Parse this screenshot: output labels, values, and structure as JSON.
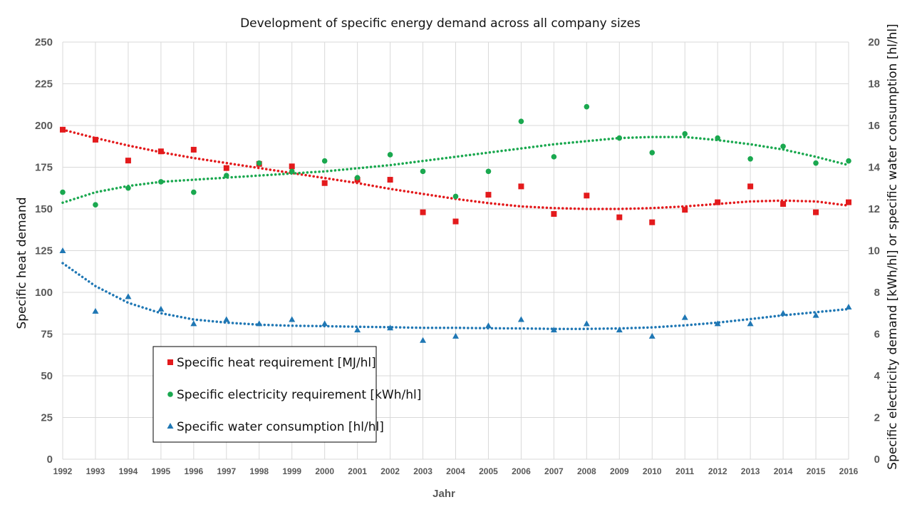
{
  "chart_data": {
    "type": "scatter",
    "title": "Development of specific energy demand across all company sizes",
    "xlabel": "Jahr",
    "ylabel_left": "Specific heat demand",
    "ylabel_right": "Specific electricity demand [kWh/hl] or specific water consumption [hl/hl]",
    "x": [
      1992,
      1993,
      1994,
      1995,
      1996,
      1997,
      1998,
      1999,
      2000,
      2001,
      2002,
      2003,
      2004,
      2005,
      2006,
      2007,
      2008,
      2009,
      2010,
      2011,
      2012,
      2013,
      2014,
      2015,
      2016
    ],
    "x_tick_labels": [
      "1992",
      "1993",
      "1994",
      "1995",
      "1996",
      "1997",
      "1998",
      "1999",
      "2000",
      "2001",
      "2002",
      "2003",
      "2004",
      "2005",
      "2006",
      "2007",
      "2008",
      "2009",
      "2010",
      "2011",
      "2012",
      "2013",
      "2014",
      "2015",
      "2016"
    ],
    "ylim_left": [
      0,
      250
    ],
    "ylim_right": [
      0,
      20
    ],
    "left_ticks": [
      "0",
      "25",
      "50",
      "75",
      "100",
      "125",
      "150",
      "175",
      "200",
      "225",
      "250"
    ],
    "right_ticks": [
      "0",
      "2",
      "4",
      "6",
      "8",
      "10",
      "12",
      "14",
      "16",
      "18",
      "20"
    ],
    "grid": true,
    "legend_position": "lower-left",
    "series": [
      {
        "name": "Specific heat requirement [MJ/hl]",
        "axis": "left",
        "marker": "square",
        "color": "#e31a1c",
        "trendline": "polynomial",
        "values": [
          197.5,
          191.5,
          179,
          184.5,
          185.5,
          174.5,
          177,
          175.5,
          165.5,
          167.5,
          167.5,
          148,
          142.5,
          158.5,
          163.5,
          147,
          158,
          145,
          142,
          149.5,
          154,
          163.5,
          153,
          148,
          154
        ],
        "trend_values": [
          197.5,
          192.5,
          188,
          184,
          180.5,
          177.5,
          174.5,
          171.5,
          168.5,
          165.5,
          162,
          159,
          156,
          153.5,
          151.5,
          150.5,
          150,
          150,
          150.5,
          151.5,
          153,
          154.5,
          155,
          154.5,
          152
        ]
      },
      {
        "name": "Specific electricity requirement [kWh/hl]",
        "axis": "right",
        "marker": "circle",
        "color": "#1aa84f",
        "trendline": "polynomial",
        "values": [
          12.8,
          12.2,
          13.0,
          13.3,
          12.8,
          13.6,
          14.2,
          13.8,
          14.3,
          13.5,
          14.6,
          13.8,
          12.6,
          13.8,
          16.2,
          14.5,
          16.9,
          15.4,
          14.7,
          15.6,
          15.4,
          14.4,
          15.0,
          14.2,
          14.3
        ],
        "trend_values": [
          12.3,
          12.8,
          13.1,
          13.3,
          13.4,
          13.5,
          13.6,
          13.7,
          13.8,
          13.95,
          14.1,
          14.3,
          14.5,
          14.7,
          14.9,
          15.1,
          15.25,
          15.4,
          15.45,
          15.45,
          15.3,
          15.1,
          14.85,
          14.5,
          14.1
        ]
      },
      {
        "name": "Specific water consumption [hl/hl]",
        "axis": "right",
        "marker": "triangle",
        "color": "#1f77b4",
        "trendline": "polynomial",
        "values": [
          10.0,
          7.1,
          7.8,
          7.2,
          6.5,
          6.7,
          6.5,
          6.7,
          6.5,
          6.2,
          6.3,
          5.7,
          5.9,
          6.4,
          6.7,
          6.2,
          6.5,
          6.2,
          5.9,
          6.8,
          6.5,
          6.5,
          7.0,
          6.9,
          7.3
        ],
        "trend_values": [
          9.4,
          8.3,
          7.5,
          7.0,
          6.7,
          6.55,
          6.45,
          6.4,
          6.38,
          6.35,
          6.33,
          6.3,
          6.3,
          6.28,
          6.27,
          6.25,
          6.25,
          6.27,
          6.32,
          6.42,
          6.55,
          6.72,
          6.9,
          7.05,
          7.2
        ]
      }
    ]
  }
}
